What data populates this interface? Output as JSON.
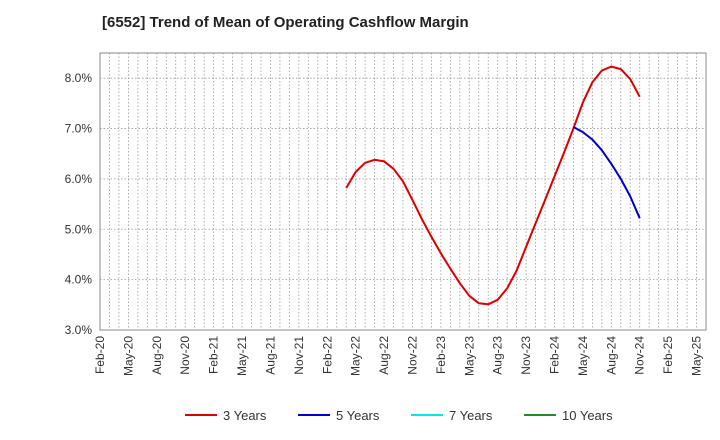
{
  "chart_data": {
    "type": "line",
    "title": "[6552]  Trend of Mean of Operating Cashflow Margin",
    "xlabel": "",
    "ylabel": "",
    "ylim": [
      3.0,
      8.5
    ],
    "y_ticks": [
      "3.0%",
      "4.0%",
      "5.0%",
      "6.0%",
      "7.0%",
      "8.0%"
    ],
    "y_tick_values": [
      3.0,
      4.0,
      5.0,
      6.0,
      7.0,
      8.0
    ],
    "x_ticks": [
      "Feb-20",
      "May-20",
      "Aug-20",
      "Nov-20",
      "Feb-21",
      "May-21",
      "Aug-21",
      "Nov-21",
      "Feb-22",
      "May-22",
      "Aug-22",
      "Nov-22",
      "Feb-23",
      "May-23",
      "Aug-23",
      "Nov-23",
      "Feb-24",
      "May-24",
      "Aug-24",
      "Nov-24",
      "Feb-25",
      "May-25"
    ],
    "grid": true,
    "legend_position": "bottom",
    "series": [
      {
        "name": "3 Years",
        "color": "#dd0000",
        "points": [
          [
            "2022-04",
            5.82
          ],
          [
            "2022-05",
            6.14
          ],
          [
            "2022-06",
            6.32
          ],
          [
            "2022-07",
            6.38
          ],
          [
            "2022-08",
            6.35
          ],
          [
            "2022-09",
            6.2
          ],
          [
            "2022-10",
            5.95
          ],
          [
            "2022-11",
            5.58
          ],
          [
            "2022-12",
            5.2
          ],
          [
            "2023-01",
            4.85
          ],
          [
            "2023-02",
            4.52
          ],
          [
            "2023-03",
            4.22
          ],
          [
            "2023-04",
            3.93
          ],
          [
            "2023-05",
            3.68
          ],
          [
            "2023-06",
            3.53
          ],
          [
            "2023-07",
            3.51
          ],
          [
            "2023-08",
            3.6
          ],
          [
            "2023-09",
            3.83
          ],
          [
            "2023-10",
            4.18
          ],
          [
            "2023-11",
            4.65
          ],
          [
            "2023-12",
            5.12
          ],
          [
            "2024-01",
            5.58
          ],
          [
            "2024-02",
            6.05
          ],
          [
            "2024-03",
            6.52
          ],
          [
            "2024-04",
            7.0
          ],
          [
            "2024-05",
            7.52
          ],
          [
            "2024-06",
            7.92
          ],
          [
            "2024-07",
            8.15
          ],
          [
            "2024-08",
            8.23
          ],
          [
            "2024-09",
            8.18
          ],
          [
            "2024-10",
            7.98
          ],
          [
            "2024-11",
            7.63
          ]
        ]
      },
      {
        "name": "5 Years",
        "color": "#0000cc",
        "points": [
          [
            "2024-04",
            7.03
          ],
          [
            "2024-05",
            6.93
          ],
          [
            "2024-06",
            6.78
          ],
          [
            "2024-07",
            6.57
          ],
          [
            "2024-08",
            6.3
          ],
          [
            "2024-09",
            6.0
          ],
          [
            "2024-10",
            5.65
          ],
          [
            "2024-11",
            5.22
          ]
        ]
      },
      {
        "name": "7 Years",
        "color": "#00e5ee",
        "points": []
      },
      {
        "name": "10 Years",
        "color": "#228b22",
        "points": []
      }
    ]
  }
}
